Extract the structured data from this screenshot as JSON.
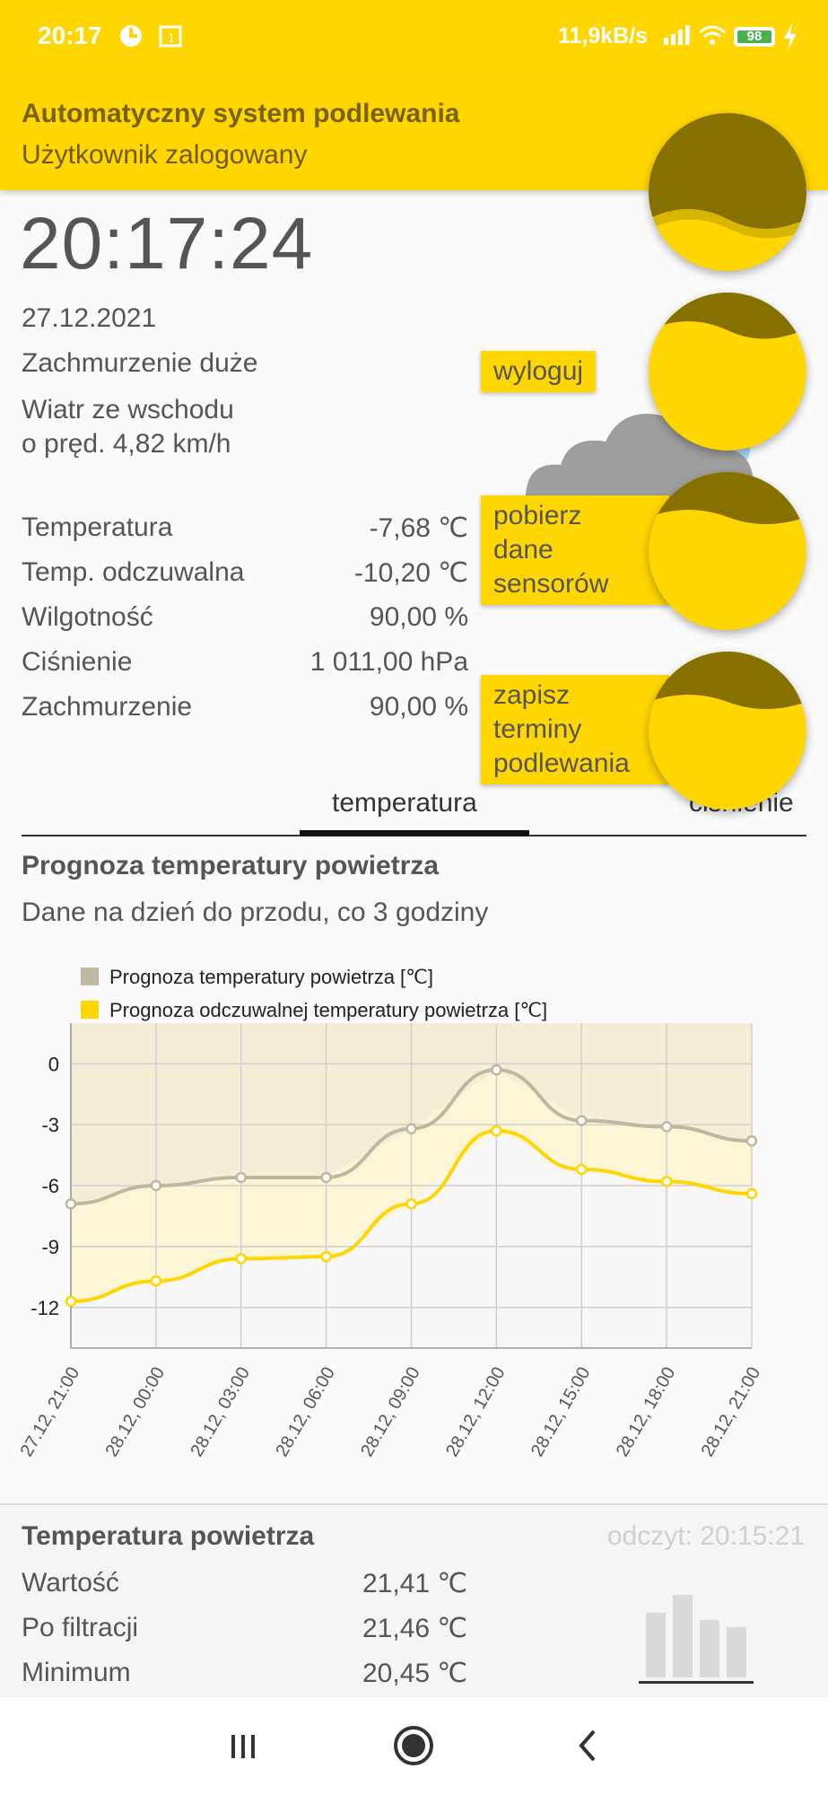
{
  "status": {
    "time": "20:17",
    "speed": "11,9kB/s",
    "battery": "98",
    "icons": [
      "data-saver-icon",
      "calendar-icon",
      "signal-icon",
      "wifi-icon",
      "battery-icon",
      "charging-bolt-icon"
    ]
  },
  "header": {
    "title": "Automatyczny system podlewania",
    "subtitle": "Użytkownik zalogowany"
  },
  "weather": {
    "clock": "20:17:24",
    "date": "27.12.2021",
    "description": "Zachmurzenie duże",
    "wind_line1": "Wiatr ze wschodu",
    "wind_line2": "o pręd. 4,82 km/h",
    "icon": "cloud-icon",
    "metrics": [
      {
        "label": "Temperatura",
        "value": "-7,68 ℃"
      },
      {
        "label": "Temp. odczuwalna",
        "value": "-10,20 ℃"
      },
      {
        "label": "Wilgotność",
        "value": "90,00 %"
      },
      {
        "label": "Ciśnienie",
        "value": "1 011,00 hPa"
      },
      {
        "label": "Zachmurzenie",
        "value": "90,00 %"
      }
    ]
  },
  "fab_menu": {
    "logout": "wyloguj",
    "fetch_line1": "pobierz",
    "fetch_line2": "dane",
    "fetch_line3": "sensorów",
    "save_line1": "zapisz",
    "save_line2": "terminy",
    "save_line3": "podlewania"
  },
  "tabs": {
    "active": "temperatura",
    "next": "ciśnienie"
  },
  "forecast": {
    "title": "Prognoza temperatury powietrza",
    "subtitle": "Dane na dzień do przodu, co 3 godziny"
  },
  "chart_data": {
    "type": "line",
    "x": [
      "27.12, 21:00",
      "28.12, 00:00",
      "28.12, 03:00",
      "28.12, 06:00",
      "28.12, 09:00",
      "28.12, 12:00",
      "28.12, 15:00",
      "28.12, 18:00",
      "28.12, 21:00"
    ],
    "series": [
      {
        "name": "Prognoza temperatury powietrza [℃]",
        "color": "#bfb8a0",
        "values": [
          -6.9,
          -6.0,
          -5.6,
          -5.6,
          -3.2,
          -0.3,
          -2.8,
          -3.1,
          -3.8
        ]
      },
      {
        "name": "Prognoza odczuwalnej temperatury powietrza [℃]",
        "color": "#ffd600",
        "values": [
          -11.7,
          -10.7,
          -9.6,
          -9.5,
          -6.9,
          -3.3,
          -5.2,
          -5.8,
          -6.4
        ]
      }
    ],
    "yticks": [
      0,
      -3,
      -6,
      -9,
      -12
    ],
    "ylim": [
      -14,
      2
    ],
    "grid": true,
    "legend": "top-left"
  },
  "sensor": {
    "title": "Temperatura powietrza",
    "reading": "odczyt: 20:15:21",
    "rows": [
      {
        "label": "Wartość",
        "value": "21,41 ℃"
      },
      {
        "label": "Po filtracji",
        "value": "21,46 ℃"
      },
      {
        "label": "Minimum",
        "value": "20,45 ℃"
      }
    ],
    "icon": "bar-chart-icon"
  },
  "nav": {
    "icons": [
      "recent-apps-icon",
      "home-icon",
      "back-icon"
    ]
  }
}
